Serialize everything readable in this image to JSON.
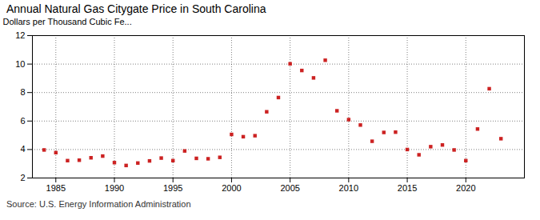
{
  "chart_data": {
    "type": "scatter",
    "title": "Annual Natural Gas Citygate Price in South Carolina",
    "ylabel": "Dollars per Thousand Cubic Fe...",
    "annotation": "Source: U.S. Energy Information Administration",
    "x": [
      1984,
      1985,
      1986,
      1987,
      1988,
      1989,
      1990,
      1991,
      1992,
      1993,
      1994,
      1995,
      1996,
      1997,
      1998,
      1999,
      2000,
      2001,
      2002,
      2003,
      2004,
      2005,
      2006,
      2007,
      2008,
      2009,
      2010,
      2011,
      2012,
      2013,
      2014,
      2015,
      2016,
      2017,
      2018,
      2019,
      2020,
      2021,
      2022,
      2023
    ],
    "values": [
      3.97,
      3.78,
      3.22,
      3.25,
      3.42,
      3.54,
      3.08,
      2.88,
      3.05,
      3.2,
      3.4,
      3.22,
      3.9,
      3.38,
      3.35,
      3.45,
      5.06,
      4.9,
      4.97,
      6.65,
      7.65,
      10.02,
      9.55,
      9.03,
      10.27,
      6.72,
      6.1,
      5.72,
      4.58,
      5.2,
      5.22,
      4.0,
      3.63,
      4.2,
      4.32,
      3.97,
      3.22,
      5.44,
      8.27,
      4.76
    ],
    "color": "#cc2222",
    "marker": "square",
    "xlim": [
      1983,
      2025
    ],
    "xticks": [
      1985,
      1990,
      1995,
      2000,
      2005,
      2010,
      2015,
      2020
    ],
    "ylim": [
      2,
      12
    ],
    "yticks": [
      2,
      4,
      6,
      8,
      10,
      12
    ],
    "grid": true
  }
}
